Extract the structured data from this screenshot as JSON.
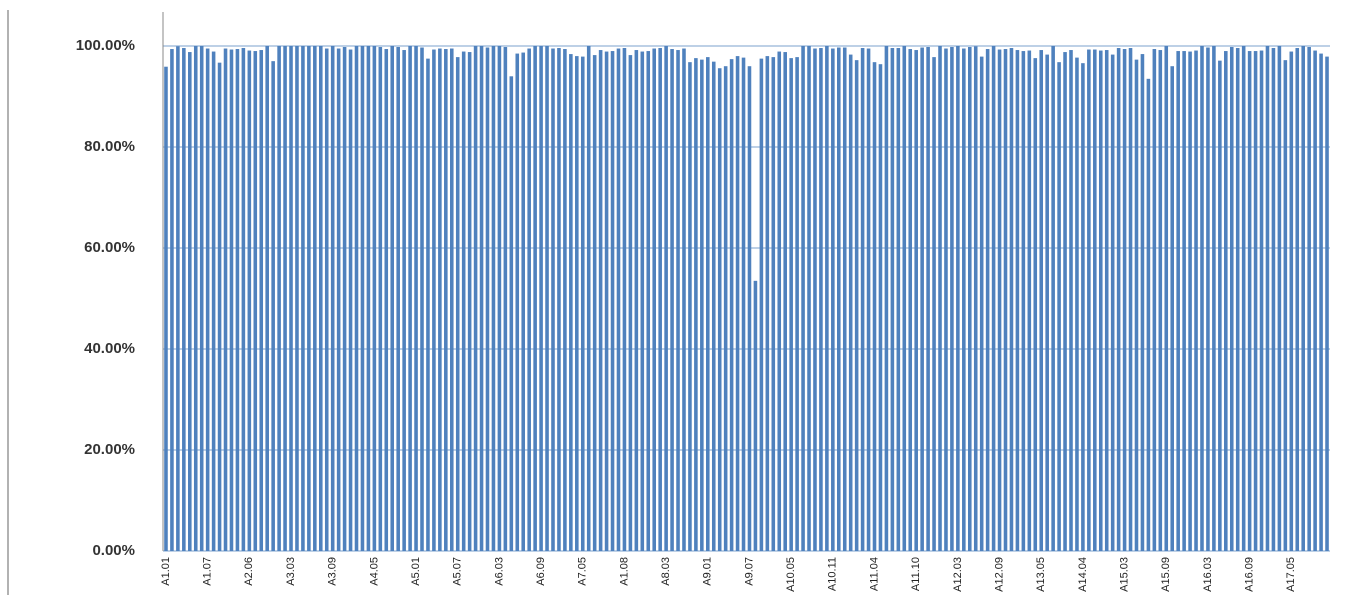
{
  "chart_data": {
    "type": "bar",
    "color": "#4f81bd",
    "grid": true,
    "ylim": [
      0,
      100
    ],
    "yticks": [
      {
        "value": 0,
        "label": "0.00%"
      },
      {
        "value": 20,
        "label": "20.00%"
      },
      {
        "value": 40,
        "label": "40.00%"
      },
      {
        "value": 60,
        "label": "60.00%"
      },
      {
        "value": 80,
        "label": "80.00%"
      },
      {
        "value": 100,
        "label": "100.00%"
      }
    ],
    "categories": [
      "A1.01",
      null,
      null,
      null,
      null,
      null,
      null,
      "A1.07",
      null,
      null,
      null,
      null,
      null,
      null,
      "A2.06",
      null,
      null,
      null,
      null,
      null,
      null,
      "A3.03",
      null,
      null,
      null,
      null,
      null,
      null,
      "A3.09",
      null,
      null,
      null,
      null,
      null,
      null,
      "A4.05",
      null,
      null,
      null,
      null,
      null,
      null,
      "A5.01",
      null,
      null,
      null,
      null,
      null,
      null,
      "A5.07",
      null,
      null,
      null,
      null,
      null,
      null,
      "A6.03",
      null,
      null,
      null,
      null,
      null,
      null,
      "A6.09",
      null,
      null,
      null,
      null,
      null,
      null,
      "A7.05",
      null,
      null,
      null,
      null,
      null,
      null,
      "A1.08",
      null,
      null,
      null,
      null,
      null,
      null,
      "A8.03",
      null,
      null,
      null,
      null,
      null,
      null,
      "A9.01",
      null,
      null,
      null,
      null,
      null,
      null,
      "A9.07",
      null,
      null,
      null,
      null,
      null,
      null,
      "A10.05",
      null,
      null,
      null,
      null,
      null,
      null,
      "A10.11",
      null,
      null,
      null,
      null,
      null,
      null,
      "A11.04",
      null,
      null,
      null,
      null,
      null,
      null,
      "A11.10",
      null,
      null,
      null,
      null,
      null,
      null,
      "A12.03",
      null,
      null,
      null,
      null,
      null,
      null,
      "A12.09",
      null,
      null,
      null,
      null,
      null,
      null,
      "A13.05",
      null,
      null,
      null,
      null,
      null,
      null,
      "A14.04",
      null,
      null,
      null,
      null,
      null,
      null,
      "A15.03",
      null,
      null,
      null,
      null,
      null,
      null,
      "A15.09",
      null,
      null,
      null,
      null,
      null,
      null,
      "A16.03",
      null,
      null,
      null,
      null,
      null,
      null,
      "A16.09",
      null,
      null,
      null,
      null,
      null,
      null,
      "A17.05",
      null,
      null,
      null,
      null,
      null,
      null
    ],
    "values": [
      95.9,
      99.4,
      99.9,
      99.6,
      98.8,
      100,
      100,
      99.5,
      98.9,
      96.7,
      99.5,
      99.3,
      99.4,
      99.6,
      99.1,
      99.0,
      99.2,
      100,
      97.0,
      100,
      100,
      100,
      100,
      100,
      100,
      100,
      100,
      99.5,
      100,
      99.5,
      99.8,
      99.3,
      100,
      100,
      100,
      100,
      99.8,
      99.4,
      100,
      99.8,
      99.2,
      100,
      100,
      99.7,
      97.5,
      99.3,
      99.5,
      99.4,
      99.5,
      97.8,
      98.9,
      98.8,
      100,
      100,
      99.7,
      100,
      100,
      99.8,
      94.0,
      98.5,
      98.7,
      99.5,
      100,
      100,
      100,
      99.5,
      99.6,
      99.4,
      98.4,
      98.0,
      97.9,
      100,
      98.2,
      99.2,
      98.9,
      99.0,
      99.5,
      99.6,
      98.2,
      99.2,
      98.9,
      99.0,
      99.5,
      99.6,
      100,
      99.4,
      99.2,
      99.5,
      96.8,
      97.6,
      97.3,
      97.8,
      96.9,
      95.6,
      96.0,
      97.4,
      98.0,
      97.7,
      96.0,
      53.5,
      97.5,
      98.0,
      97.8,
      98.9,
      98.8,
      97.6,
      97.8,
      100,
      100,
      99.5,
      99.6,
      100,
      99.5,
      99.7,
      99.7,
      98.3,
      97.2,
      99.6,
      99.5,
      96.8,
      96.4,
      100,
      99.6,
      99.6,
      100,
      99.4,
      99.2,
      99.7,
      99.8,
      97.8,
      100,
      99.5,
      99.8,
      100,
      99.5,
      99.8,
      99.9,
      97.9,
      99.4,
      100,
      99.3,
      99.4,
      99.6,
      99.2,
      99.0,
      99.1,
      97.6,
      99.2,
      98.3,
      100,
      96.8,
      98.8,
      99.2,
      97.7,
      96.6,
      99.3,
      99.3,
      99.1,
      99.2,
      98.3,
      99.6,
      99.4,
      99.6,
      97.3,
      98.4,
      93.5,
      99.4,
      99.2,
      100,
      96.0,
      99.0,
      99.0,
      98.9,
      99.1,
      100,
      99.7,
      100,
      97.1,
      99.0,
      99.8,
      99.6,
      100,
      99.0,
      99.0,
      99.1,
      100,
      99.6,
      100,
      97.2,
      98.9,
      99.6,
      100,
      99.8,
      99.1,
      98.5,
      97.9
    ]
  }
}
